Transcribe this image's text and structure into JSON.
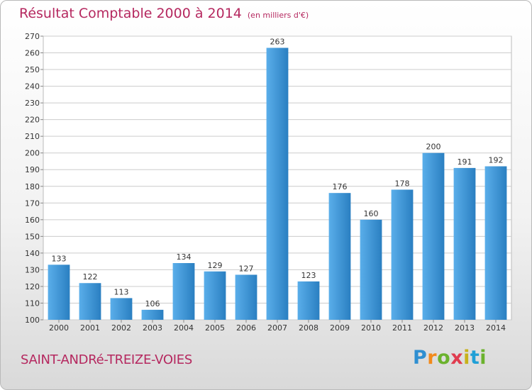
{
  "title": "Résultat Comptable 2000 à 2014",
  "unit_note": "(en milliers d'€)",
  "city": "SAINT-ANDRé-TREIZE-VOIES",
  "logo": {
    "letters": [
      "P",
      "r",
      "o",
      "x",
      "i",
      "t",
      "i"
    ]
  },
  "colors": {
    "title": "#b5285f",
    "bar_light": "#5aaeea",
    "bar_dark": "#2a7fc1",
    "grid": "#cccccc"
  },
  "chart_data": {
    "type": "bar",
    "title": "Résultat Comptable 2000 à 2014",
    "categories": [
      "2000",
      "2001",
      "2002",
      "2003",
      "2004",
      "2005",
      "2006",
      "2007",
      "2008",
      "2009",
      "2010",
      "2011",
      "2012",
      "2013",
      "2014"
    ],
    "values": [
      133,
      122,
      113,
      106,
      134,
      129,
      127,
      263,
      123,
      176,
      160,
      178,
      200,
      191,
      192
    ],
    "ylim": [
      100,
      270
    ],
    "ytick_step": 10,
    "grid": true,
    "xlabel": "",
    "ylabel": ""
  }
}
